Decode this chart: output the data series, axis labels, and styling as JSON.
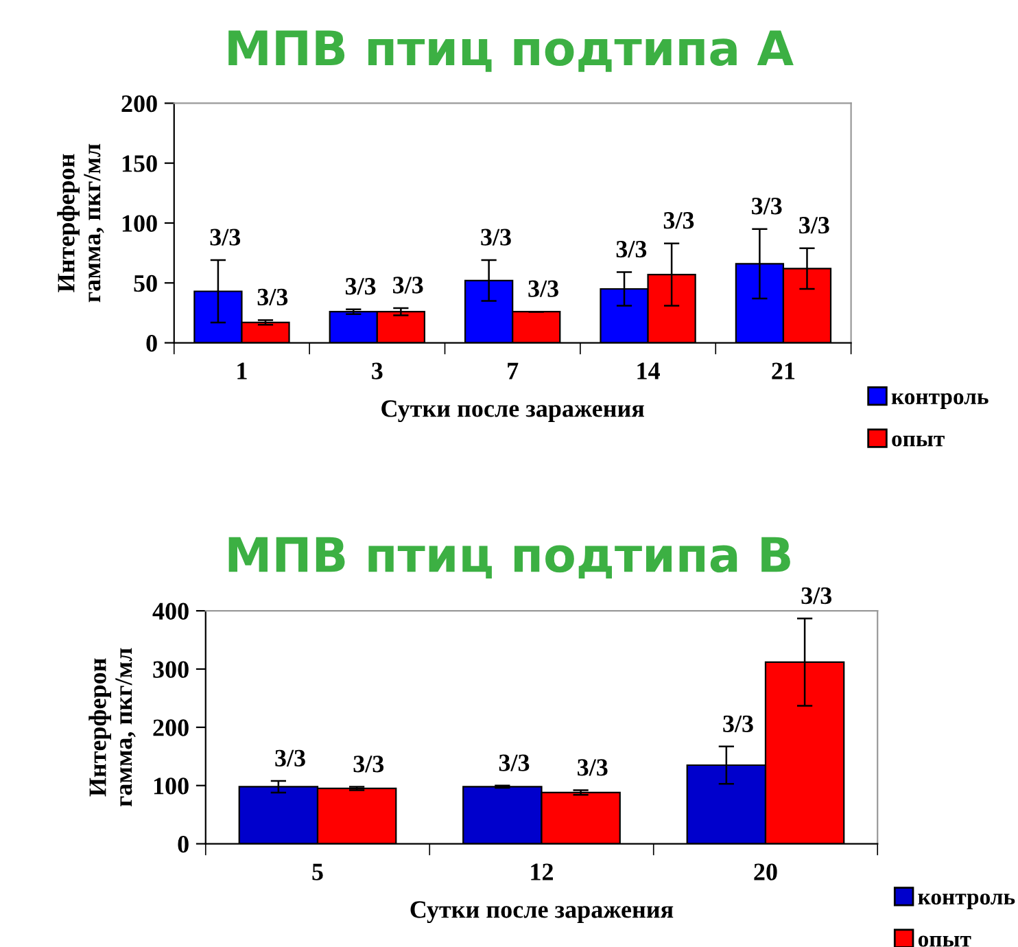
{
  "chart_data": [
    {
      "type": "bar",
      "title": "МПВ птиц подтипа А",
      "xlabel": "Сутки после заражения",
      "ylabel": "Интерферон\nгамма, пкг/мл",
      "categories": [
        "1",
        "3",
        "7",
        "14",
        "21"
      ],
      "series": [
        {
          "name": "контроль",
          "color": "#0000ff",
          "values": [
            43,
            26,
            52,
            45,
            66
          ],
          "errors": [
            26,
            2,
            17,
            14,
            29
          ]
        },
        {
          "name": "опыт",
          "color": "#ff0000",
          "values": [
            17,
            26,
            26,
            57,
            62
          ],
          "errors": [
            2,
            3,
            0,
            26,
            17
          ]
        }
      ],
      "annotations": [
        "3/3",
        "3/3",
        "3/3",
        "3/3",
        "3/3",
        "3/3",
        "3/3",
        "3/3",
        "3/3",
        "3/3"
      ],
      "ylim": [
        0,
        200
      ],
      "yticks": [
        0,
        50,
        100,
        150,
        200
      ],
      "grid": false,
      "legend": "bottom right"
    },
    {
      "type": "bar",
      "title": "МПВ птиц подтипа В",
      "xlabel": "Сутки после заражения",
      "ylabel": "Интерферон\nгамма, пкг/мл",
      "categories": [
        "5",
        "12",
        "20"
      ],
      "series": [
        {
          "name": "контроль",
          "color": "#0000cc",
          "values": [
            98,
            98,
            135
          ],
          "errors": [
            10,
            2,
            32
          ]
        },
        {
          "name": "опыт",
          "color": "#ff0000",
          "values": [
            95,
            88,
            312
          ],
          "errors": [
            3,
            4,
            75
          ]
        }
      ],
      "annotations": [
        "3/3",
        "3/3",
        "3/3",
        "3/3",
        "3/3",
        "3/3"
      ],
      "ylim": [
        0,
        400
      ],
      "yticks": [
        0,
        100,
        200,
        300,
        400
      ],
      "grid": false,
      "legend": "bottom right"
    }
  ]
}
